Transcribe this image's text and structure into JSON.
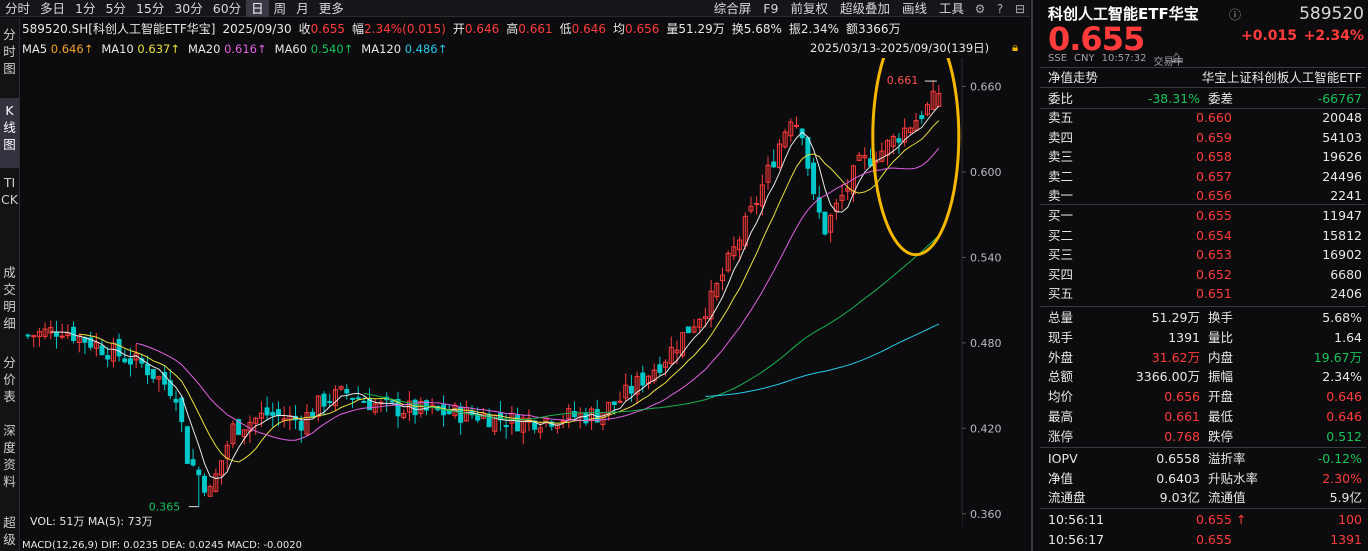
{
  "toolbar": {
    "tabs": [
      "分时",
      "多日",
      "1分",
      "5分",
      "15分",
      "30分",
      "60分",
      "日",
      "周",
      "月",
      "更多"
    ],
    "active_tab": "日",
    "right_items": [
      "综合屏",
      "F9",
      "前复权",
      "超级叠加",
      "画线",
      "工具"
    ]
  },
  "sidebar": [
    {
      "label": "分时图"
    },
    {
      "label": "K线图"
    },
    {
      "label": "TICK"
    },
    {
      "label": "成交明细"
    },
    {
      "label": "分价表"
    },
    {
      "label": "深度资料"
    },
    {
      "label": "超级"
    }
  ],
  "info": {
    "symbol": "589520.SH[科创人工智能ETF华宝]",
    "date": "2025/09/30",
    "close_label": "收",
    "close": "0.655",
    "amp_label": "幅",
    "amp": "2.34%(0.015)",
    "open_label": "开",
    "open": "0.646",
    "high_label": "高",
    "high": "0.661",
    "low_label": "低",
    "low": "0.646",
    "avg_label": "均",
    "avg": "0.656",
    "vol_label": "量",
    "vol": "51.29万",
    "turn_label": "换",
    "turn": "5.68%",
    "swing_label": "振",
    "swing": "2.34%",
    "amt_label": "额",
    "amt": "3366万"
  },
  "ma": {
    "ma5": "MA5",
    "ma5_val": "0.646↑",
    "ma10": "MA10",
    "ma10_val": "0.637↑",
    "ma20": "MA20",
    "ma20_val": "0.616↑",
    "ma60": "MA60",
    "ma60_val": "0.540↑",
    "ma120": "MA120",
    "ma120_val": "0.486↑",
    "range": "2025/03/13-2025/09/30(139日)"
  },
  "chart_data": {
    "type": "candlestick",
    "ylim": [
      0.35,
      0.68
    ],
    "y_ticks": [
      "0.660",
      "0.600",
      "0.540",
      "0.480",
      "0.420",
      "0.360"
    ],
    "max_label": "0.661",
    "min_label": "0.365",
    "colors": {
      "up": "#ff3b3b",
      "down": "#00c8c8",
      "ma5": "#e8e8e8",
      "ma10": "#e8e040",
      "ma20": "#e060e0",
      "ma60": "#19b050",
      "ma120": "#28c8e8",
      "highlight": "#f5b800"
    },
    "bottom_labels": {
      "vol": "VOL: 51万 MA(5): 73万",
      "macd": "MACD(12,26,9) DIF: 0.0235 DEA: 0.0245 MACD: -0.0020"
    }
  },
  "quote": {
    "title": "科创人工智能ETF华宝",
    "code": "589520",
    "price": "0.655",
    "change": "+0.015",
    "change_pct": "+2.34%",
    "meta": [
      "SSE",
      "CNY",
      "10:57:32",
      "交易中"
    ],
    "nav_trend": "净值走势",
    "index_name": "华宝上证科创板人工智能ETF",
    "weibi_label": "委比",
    "weibi": "-38.31%",
    "weicha_label": "委差",
    "weicha": "-66767",
    "asks": [
      {
        "label": "卖五",
        "price": "0.660",
        "vol": "20048"
      },
      {
        "label": "卖四",
        "price": "0.659",
        "vol": "54103"
      },
      {
        "label": "卖三",
        "price": "0.658",
        "vol": "19626"
      },
      {
        "label": "卖二",
        "price": "0.657",
        "vol": "24496"
      },
      {
        "label": "卖一",
        "price": "0.656",
        "vol": "2241"
      }
    ],
    "bids": [
      {
        "label": "买一",
        "price": "0.655",
        "vol": "11947"
      },
      {
        "label": "买二",
        "price": "0.654",
        "vol": "15812"
      },
      {
        "label": "买三",
        "price": "0.653",
        "vol": "16902"
      },
      {
        "label": "买四",
        "price": "0.652",
        "vol": "6680"
      },
      {
        "label": "买五",
        "price": "0.651",
        "vol": "2406"
      }
    ],
    "stats": [
      {
        "l1": "总量",
        "v1": "51.29万",
        "c1": "white",
        "l2": "换手",
        "v2": "5.68%",
        "c2": "white"
      },
      {
        "l1": "现手",
        "v1": "1391",
        "c1": "white",
        "l2": "量比",
        "v2": "1.64",
        "c2": "white"
      },
      {
        "l1": "外盘",
        "v1": "31.62万",
        "c1": "red",
        "l2": "内盘",
        "v2": "19.67万",
        "c2": "green"
      },
      {
        "l1": "总额",
        "v1": "3366.00万",
        "c1": "white",
        "l2": "振幅",
        "v2": "2.34%",
        "c2": "white"
      },
      {
        "l1": "均价",
        "v1": "0.656",
        "c1": "red",
        "l2": "开盘",
        "v2": "0.646",
        "c2": "red"
      },
      {
        "l1": "最高",
        "v1": "0.661",
        "c1": "red",
        "l2": "最低",
        "v2": "0.646",
        "c2": "red"
      },
      {
        "l1": "涨停",
        "v1": "0.768",
        "c1": "red",
        "l2": "跌停",
        "v2": "0.512",
        "c2": "green"
      }
    ],
    "fund": [
      {
        "l1": "IOPV",
        "v1": "0.6558",
        "c1": "white",
        "l2": "溢折率",
        "v2": "-0.12%",
        "c2": "green"
      },
      {
        "l1": "净值",
        "v1": "0.6403",
        "c1": "white",
        "l2": "升贴水率",
        "v2": "2.30%",
        "c2": "red"
      },
      {
        "l1": "流通盘",
        "v1": "9.03亿",
        "c1": "white",
        "l2": "流通值",
        "v2": "5.9亿",
        "c2": "white"
      }
    ],
    "ticks": [
      {
        "time": "10:56:11",
        "price": "0.655",
        "arrow": "↑",
        "vol": "100"
      },
      {
        "time": "10:56:17",
        "price": "0.655",
        "arrow": "",
        "vol": "1391"
      }
    ]
  }
}
